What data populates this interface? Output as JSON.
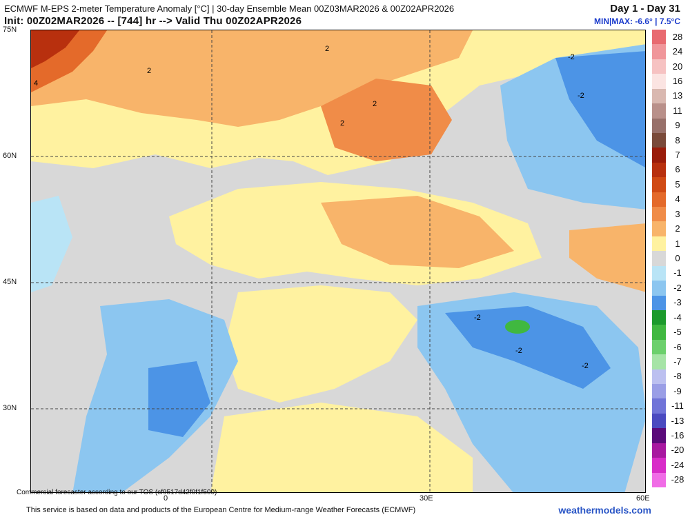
{
  "header": {
    "title": "ECMWF M-EPS 2-meter Temperature Anomaly [°C] | 30-day Ensemble Mean 00Z03MAR2026 & 00Z02APR2026",
    "init": "Init: 00Z02MAR2026 -- [744] hr --> Valid Thu 00Z02APR2026",
    "day_range": "Day 1 - Day 31",
    "minmax": "MIN|MAX: -6.6° | 7.5°C"
  },
  "axes": {
    "lat_labels": [
      "75N",
      "60N",
      "45N",
      "30N"
    ],
    "lon_labels": [
      "0",
      "30E",
      "60E"
    ]
  },
  "contour_labels": [
    "2",
    "2",
    "4",
    "2",
    "2",
    "-2",
    "-2",
    "-2",
    "-2",
    "-2"
  ],
  "colorbar": {
    "labels": [
      "28",
      "24",
      "20",
      "16",
      "13",
      "11",
      "9",
      "8",
      "7",
      "6",
      "5",
      "4",
      "3",
      "2",
      "1",
      "0",
      "-1",
      "-2",
      "-3",
      "-4",
      "-5",
      "-6",
      "-7",
      "-8",
      "-9",
      "-11",
      "-13",
      "-16",
      "-20",
      "-24",
      "-28"
    ],
    "colors": [
      "#e86a70",
      "#f0969a",
      "#f6c2c2",
      "#fbe4e2",
      "#d9b8b0",
      "#b9908a",
      "#98706a",
      "#7a4a3a",
      "#9a1c0a",
      "#b8300e",
      "#d04a14",
      "#e46a2a",
      "#f08c48",
      "#f8b46a",
      "#fff2a0",
      "#d8d8d8",
      "#b9e4f6",
      "#8cc6f0",
      "#4c94e6",
      "#1c9a2c",
      "#40b840",
      "#6cd06c",
      "#a6e4a6",
      "#bcc0f0",
      "#9a9ee6",
      "#7074d8",
      "#4a4ac0",
      "#5a0a7a",
      "#a818a0",
      "#d82cc8",
      "#f06ce6"
    ]
  },
  "tos_note": "Commercial forecaster according to our TOS (cf9517d42f0f1f500)",
  "footer": {
    "left": "This service is based on data and products of the European Centre for Medium-range Weather Forecasts (ECMWF)",
    "right": "weathermodels.com"
  }
}
